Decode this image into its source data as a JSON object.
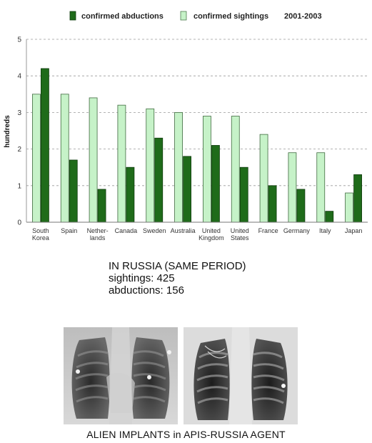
{
  "chart_data": {
    "type": "bar",
    "legend": {
      "entries": [
        {
          "name": "confirmed abductions",
          "color": "#1f6b1a"
        },
        {
          "name": "confirmed sightings",
          "color": "#c6f2c8"
        }
      ],
      "period": "2001-2003",
      "placement": "top"
    },
    "ylabel": "hundreds",
    "ylim": [
      0,
      5
    ],
    "yticks": [
      "0",
      "1",
      "2",
      "3",
      "4",
      "5"
    ],
    "grid": true,
    "categories": [
      [
        "South",
        "Korea"
      ],
      [
        "Spain"
      ],
      [
        "Nether-",
        "lands"
      ],
      [
        "Canada"
      ],
      [
        "Sweden"
      ],
      [
        "Australia"
      ],
      [
        "United",
        "Kingdom"
      ],
      [
        "United",
        "States"
      ],
      [
        "France"
      ],
      [
        "Germany"
      ],
      [
        "Italy"
      ],
      [
        "Japan"
      ]
    ],
    "series": [
      {
        "name": "confirmed sightings",
        "color": "#c6f2c8",
        "values": [
          3.5,
          3.5,
          3.4,
          3.2,
          3.1,
          3.0,
          2.9,
          2.9,
          2.4,
          1.9,
          1.9,
          0.8
        ]
      },
      {
        "name": "confirmed abductions",
        "color": "#1f6b1a",
        "values": [
          4.2,
          1.7,
          0.9,
          1.5,
          2.3,
          1.8,
          2.1,
          1.5,
          1.0,
          0.9,
          0.3,
          1.3
        ]
      }
    ]
  },
  "russia": {
    "heading": "IN RUSSIA (SAME PERIOD)",
    "sightings": "sightings: 425",
    "abductions": "abductions: 156"
  },
  "caption": "ALIEN IMPLANTS in APIS-RUSSIA AGENT"
}
